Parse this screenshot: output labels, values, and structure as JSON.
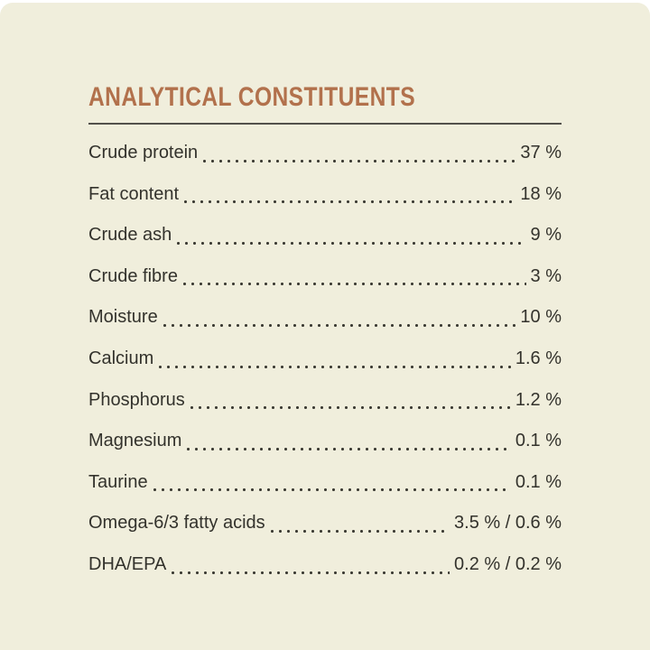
{
  "colors": {
    "page_bg": "#ffffff",
    "card_bg": "#f0eedc",
    "title_color": "#b2714c",
    "text_color": "#33322c",
    "rule_color": "#53514b",
    "dot_color": "#3a3932"
  },
  "panel": {
    "title": "ANALYTICAL CONSTITUENTS"
  },
  "table": {
    "rows": [
      {
        "label": "Crude protein",
        "value": "37 %"
      },
      {
        "label": "Fat content",
        "value": "18 %"
      },
      {
        "label": "Crude ash",
        "value": "9 %"
      },
      {
        "label": "Crude fibre",
        "value": "3 %"
      },
      {
        "label": "Moisture",
        "value": "10 %"
      },
      {
        "label": "Calcium",
        "value": "1.6 %"
      },
      {
        "label": "Phosphorus",
        "value": "1.2 %"
      },
      {
        "label": "Magnesium",
        "value": "0.1 %"
      },
      {
        "label": "Taurine",
        "value": "0.1 %"
      },
      {
        "label": "Omega-6/3 fatty acids",
        "value": "3.5 % / 0.6 %"
      },
      {
        "label": "DHA/EPA",
        "value": "0.2 % / 0.2 %"
      }
    ]
  }
}
